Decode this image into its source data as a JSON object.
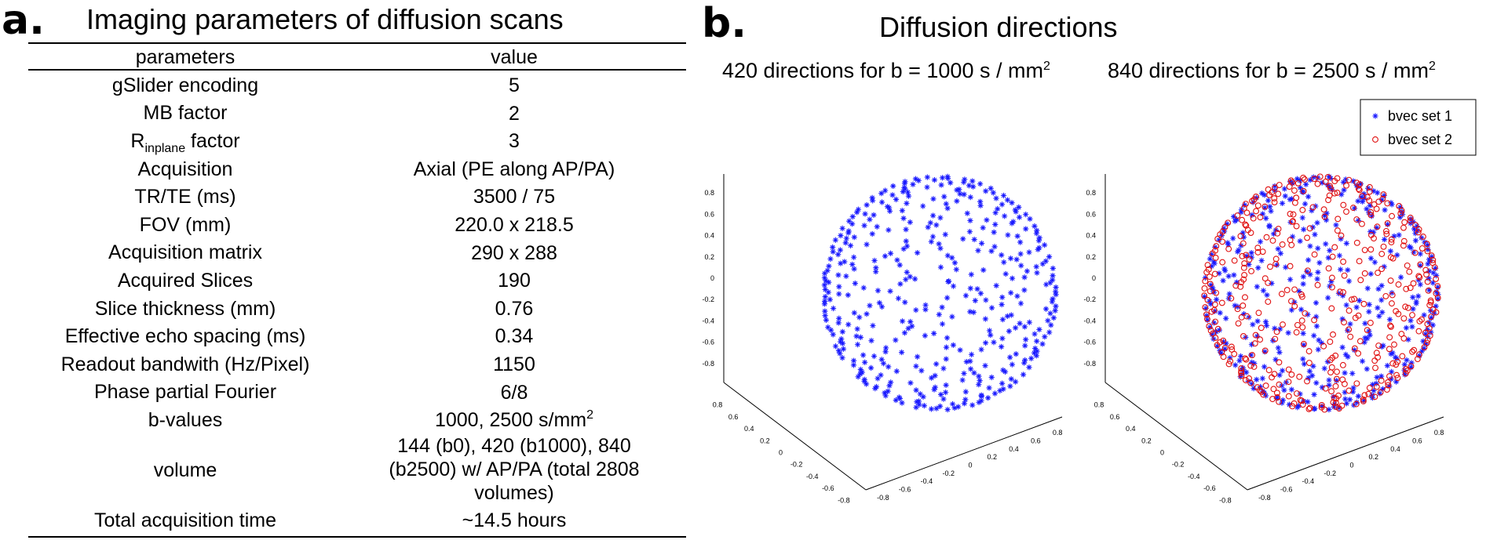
{
  "panel_a": {
    "letter": "a.",
    "title": "Imaging parameters of diffusion scans",
    "headers": {
      "param": "parameters",
      "value": "value"
    },
    "rows": [
      {
        "param": "gSlider encoding",
        "value": "5"
      },
      {
        "param": "MB factor",
        "value": "2"
      },
      {
        "param_main": "R",
        "param_sub": "inplane",
        "param_tail": " factor",
        "value": "3"
      },
      {
        "param": "Acquisition",
        "value": "Axial (PE along AP/PA)"
      },
      {
        "param": "TR/TE (ms)",
        "value": "3500 / 75"
      },
      {
        "param": "FOV (mm)",
        "value": "220.0 x 218.5"
      },
      {
        "param": "Acquisition matrix",
        "value": "290 x 288"
      },
      {
        "param": "Acquired Slices",
        "value": "190"
      },
      {
        "param": "Slice thickness (mm)",
        "value": "0.76"
      },
      {
        "param": "Effective echo spacing (ms)",
        "value": "0.34"
      },
      {
        "param": "Readout bandwith (Hz/Pixel)",
        "value": "1150"
      },
      {
        "param": "Phase partial Fourier",
        "value": "6/8"
      },
      {
        "param": "b-values",
        "value_main": "1000, 2500 s/mm",
        "value_sup": "2"
      },
      {
        "param": "volume",
        "value_lines": [
          "144 (b0), 420 (b1000), 840",
          "(b2500) w/ AP/PA (total 2808",
          "volumes)"
        ]
      },
      {
        "param": "Total acquisition time",
        "value": "~14.5 hours"
      }
    ]
  },
  "panel_b": {
    "letter": "b.",
    "title": "Diffusion directions",
    "subtitle_left": {
      "main": "420 directions for b = 1000 s / mm",
      "sup": "2"
    },
    "subtitle_right": {
      "main": "840 directions for b = 2500 s / mm",
      "sup": "2"
    },
    "legend": [
      {
        "marker": "*",
        "label": "bvec set 1",
        "color": "#1a1aff"
      },
      {
        "marker": "o",
        "label": "bvec set 2",
        "color": "#e01010"
      }
    ]
  },
  "chart_data": [
    {
      "type": "scatter",
      "title": "",
      "projection": "3d",
      "series": [
        {
          "name": "bvec set 1",
          "marker": "*",
          "color": "#1a1aff",
          "count": 420
        }
      ],
      "x_ticks": [
        "0.8",
        "0.6",
        "0.4",
        "0.2",
        "0",
        "-0.2",
        "-0.4",
        "-0.6",
        "-0.8"
      ],
      "y_ticks": [
        "-0.8",
        "-0.6",
        "-0.4",
        "-0.2",
        "0",
        "0.2",
        "0.4",
        "0.6",
        "0.8"
      ],
      "z_ticks": [
        "0.8",
        "0.6",
        "0.4",
        "0.2",
        "0",
        "-0.2",
        "-0.4",
        "-0.6",
        "-0.8"
      ],
      "xlim": [
        -1,
        1
      ],
      "ylim": [
        -1,
        1
      ],
      "zlim": [
        -1,
        1
      ],
      "grid": false
    },
    {
      "type": "scatter",
      "title": "",
      "projection": "3d",
      "series": [
        {
          "name": "bvec set 1",
          "marker": "*",
          "color": "#1a1aff",
          "count": 420
        },
        {
          "name": "bvec set 2",
          "marker": "o",
          "color": "#e01010",
          "count": 420
        }
      ],
      "x_ticks": [
        "0.8",
        "0.6",
        "0.4",
        "0.2",
        "0",
        "-0.2",
        "-0.4",
        "-0.6",
        "-0.8"
      ],
      "y_ticks": [
        "-0.8",
        "-0.6",
        "-0.4",
        "-0.2",
        "0",
        "0.2",
        "0.4",
        "0.6",
        "0.8"
      ],
      "z_ticks": [
        "0.8",
        "0.6",
        "0.4",
        "0.2",
        "0",
        "-0.2",
        "-0.4",
        "-0.6",
        "-0.8"
      ],
      "xlim": [
        -1,
        1
      ],
      "ylim": [
        -1,
        1
      ],
      "zlim": [
        -1,
        1
      ],
      "grid": false,
      "legend_position": "top-right"
    }
  ]
}
